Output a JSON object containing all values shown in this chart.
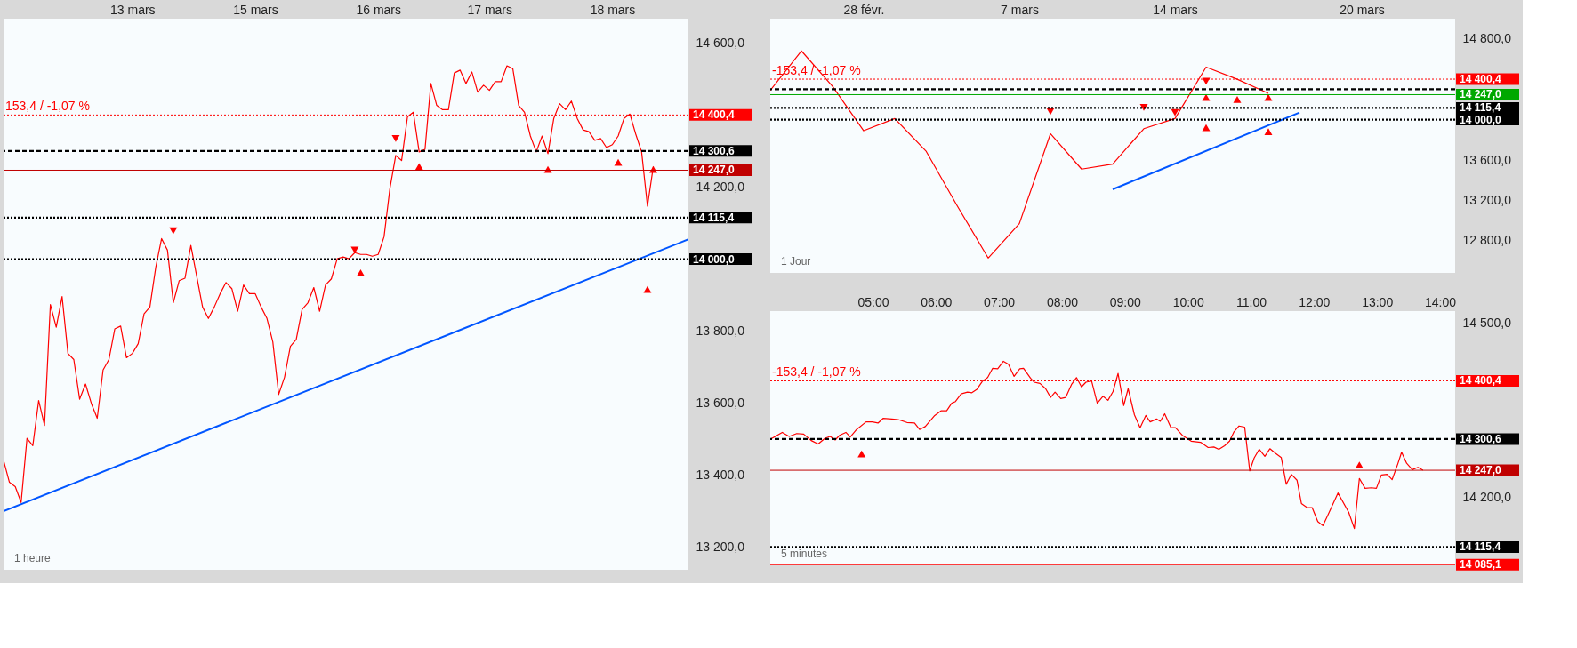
{
  "chart_data": [
    {
      "type": "line",
      "ylim": [
        13137,
        14668
      ],
      "categories": [
        null,
        null,
        null,
        null,
        null,
        null,
        null,
        null,
        null,
        null,
        null,
        null,
        null,
        null,
        null,
        null,
        null,
        null,
        null,
        null,
        null,
        null,
        "13 mars",
        null,
        null,
        null,
        null,
        null,
        null,
        null,
        null,
        null,
        null,
        null,
        null,
        null,
        null,
        null,
        null,
        null,
        null,
        null,
        null,
        "15 mars",
        null,
        null,
        null,
        null,
        null,
        null,
        null,
        null,
        null,
        null,
        null,
        null,
        null,
        null,
        null,
        null,
        null,
        null,
        null,
        null,
        "16 mars",
        null,
        null,
        null,
        null,
        null,
        null,
        null,
        null,
        null,
        null,
        null,
        null,
        null,
        null,
        null,
        null,
        null,
        null,
        "17 mars",
        null,
        null,
        null,
        null,
        null,
        null,
        null,
        null,
        null,
        null,
        null,
        null,
        null,
        null,
        null,
        null,
        null,
        null,
        null,
        null,
        "18 mars",
        null,
        null,
        null,
        null,
        null,
        null,
        null,
        null,
        null,
        null,
        null,
        null,
        null
      ],
      "yticks": [
        {
          "value": 14600,
          "label": "14 600,0"
        },
        {
          "value": 14200,
          "label": "14 200,0"
        },
        {
          "value": 13800,
          "label": "13 800,0"
        },
        {
          "value": 13600,
          "label": "13 600,0"
        },
        {
          "value": 13400,
          "label": "13 400,0"
        },
        {
          "value": 13200,
          "label": "13 200,0"
        }
      ],
      "series": [
        {
          "color": "#ff0000",
          "values": [
            13441,
            13380,
            13368,
            13324,
            13502,
            13482,
            13607,
            13538,
            13874,
            13811,
            13896,
            13738,
            13721,
            13611,
            13653,
            13599,
            13558,
            13692,
            13721,
            13806,
            13814,
            13726,
            13738,
            13765,
            13848,
            13867,
            13977,
            14057,
            14025,
            13879,
            13940,
            13947,
            14038,
            13952,
            13867,
            13835,
            13867,
            13904,
            13935,
            13918,
            13855,
            13928,
            13904,
            13904,
            13867,
            13835,
            13770,
            13624,
            13672,
            13758,
            13777,
            13860,
            13879,
            13921,
            13855,
            13928,
            13945,
            14001,
            14006,
            14001,
            14018,
            14013,
            14013,
            14008,
            14013,
            14062,
            14196,
            14288,
            14274,
            14395,
            14408,
            14298,
            14305,
            14488,
            14427,
            14415,
            14415,
            14517,
            14525,
            14488,
            14520,
            14464,
            14483,
            14469,
            14493,
            14493,
            14537,
            14529,
            14427,
            14408,
            14342,
            14298,
            14342,
            14293,
            14391,
            14432,
            14415,
            14439,
            14391,
            14359,
            14354,
            14330,
            14335,
            14310,
            14318,
            14342,
            14391,
            14403,
            14347,
            14298,
            14147,
            14257,
            null,
            null,
            null,
            null,
            null,
            null
          ]
        },
        {
          "type": "line",
          "color": "#0055ff",
          "values": [
            13300,
            null,
            null,
            null,
            null,
            null,
            null,
            null,
            null,
            null,
            null,
            null,
            null,
            null,
            null,
            null,
            null,
            null,
            null,
            null,
            null,
            null,
            null,
            null,
            null,
            null,
            null,
            null,
            null,
            null,
            null,
            null,
            null,
            null,
            null,
            null,
            null,
            null,
            null,
            null,
            null,
            null,
            null,
            null,
            null,
            null,
            null,
            null,
            null,
            null,
            null,
            null,
            null,
            null,
            null,
            null,
            null,
            null,
            null,
            null,
            null,
            null,
            null,
            null,
            null,
            null,
            null,
            null,
            null,
            null,
            null,
            null,
            null,
            null,
            null,
            null,
            null,
            null,
            null,
            null,
            null,
            null,
            null,
            null,
            null,
            null,
            null,
            null,
            null,
            null,
            null,
            null,
            null,
            null,
            null,
            null,
            null,
            null,
            null,
            null,
            null,
            null,
            null,
            null,
            null,
            null,
            null,
            null,
            null,
            null,
            null,
            null,
            null,
            null,
            null,
            null,
            null,
            14055
          ]
        },
        {
          "type": "scatter",
          "marker": "triangle-down",
          "color": "#ff0000",
          "values": [
            null,
            null,
            null,
            null,
            null,
            null,
            null,
            null,
            null,
            null,
            null,
            null,
            null,
            null,
            null,
            null,
            null,
            null,
            null,
            null,
            null,
            null,
            null,
            null,
            null,
            null,
            null,
            null,
            null,
            14079,
            null,
            null,
            null,
            null,
            null,
            null,
            null,
            null,
            null,
            null,
            null,
            null,
            null,
            null,
            null,
            null,
            null,
            null,
            null,
            null,
            null,
            null,
            null,
            null,
            null,
            null,
            null,
            null,
            null,
            null,
            14025,
            null,
            null,
            null,
            null,
            null,
            null,
            14335,
            null,
            null,
            null,
            null,
            null,
            null,
            null,
            null,
            null,
            null,
            null,
            null,
            null,
            null,
            null,
            null,
            null,
            null,
            null,
            null,
            null,
            null,
            null,
            null,
            null,
            null,
            null,
            null,
            null,
            null,
            null,
            null,
            null,
            null,
            null,
            null,
            null,
            null,
            null,
            null,
            null,
            null,
            null,
            null,
            null,
            null,
            null,
            null,
            null,
            null
          ]
        },
        {
          "type": "scatter",
          "marker": "triangle",
          "color": "#ff0000",
          "values": [
            null,
            null,
            null,
            null,
            null,
            null,
            null,
            null,
            null,
            null,
            null,
            null,
            null,
            null,
            null,
            null,
            null,
            null,
            null,
            null,
            null,
            null,
            null,
            null,
            null,
            null,
            null,
            null,
            null,
            null,
            null,
            null,
            null,
            null,
            null,
            null,
            null,
            null,
            null,
            null,
            null,
            null,
            null,
            null,
            null,
            null,
            null,
            null,
            null,
            null,
            null,
            null,
            null,
            null,
            null,
            null,
            null,
            null,
            null,
            null,
            null,
            13962,
            null,
            null,
            null,
            null,
            null,
            null,
            null,
            null,
            null,
            14257,
            null,
            null,
            null,
            null,
            null,
            null,
            null,
            null,
            null,
            null,
            null,
            null,
            null,
            null,
            null,
            null,
            null,
            null,
            null,
            null,
            null,
            14249,
            null,
            null,
            null,
            null,
            null,
            null,
            null,
            null,
            null,
            null,
            null,
            14269,
            null,
            null,
            null,
            null,
            13916,
            14249,
            null,
            null,
            null,
            null,
            null,
            null
          ]
        }
      ],
      "ref_lines": [
        {
          "axis": "y",
          "value": 14400.4,
          "label": "14 400,4",
          "color": "#ff0000",
          "line_style": "dotted"
        },
        {
          "axis": "y",
          "value": 14300.6,
          "label": "14 300,6",
          "color": "#000000",
          "line_style": "dashed"
        },
        {
          "axis": "y",
          "value": 14247.0,
          "label": "14 247,0",
          "color": "#c00000",
          "line_style": "solid"
        },
        {
          "axis": "y",
          "value": 14115.4,
          "label": "14 115,4",
          "color": "#000000",
          "line_style": "dotted"
        },
        {
          "axis": "y",
          "value": 14000.0,
          "label": "14 000,0",
          "color": "#000000",
          "line_style": "dotted"
        }
      ],
      "annotations": [
        {
          "text": "153,4 / -1,07 %",
          "y": 14400.4
        },
        "1 heure"
      ],
      "marker": "none",
      "line_style": "solid",
      "grid": false
    },
    {
      "type": "line",
      "ylim": [
        12483,
        14999
      ],
      "categories": [
        null,
        null,
        null,
        "28 févr.",
        null,
        null,
        null,
        null,
        "7 mars",
        null,
        null,
        null,
        null,
        "14 mars",
        null,
        null,
        null,
        null,
        null,
        "20 mars",
        null,
        null,
        null
      ],
      "yticks": [
        {
          "value": 14800,
          "label": "14 800,0"
        },
        {
          "value": 13600,
          "label": "13 600,0"
        },
        {
          "value": 13200,
          "label": "13 200,0"
        },
        {
          "value": 12800,
          "label": "12 800,0"
        }
      ],
      "series": [
        {
          "color": "#ff0000",
          "values": [
            14290,
            14680,
            14330,
            13890,
            14010,
            13690,
            13150,
            12630,
            12970,
            13860,
            13510,
            13560,
            13910,
            14010,
            14520,
            14400,
            14260,
            null,
            null,
            null,
            null,
            null,
            null
          ]
        },
        {
          "type": "line",
          "color": "#0055ff",
          "values": [
            null,
            null,
            null,
            null,
            null,
            null,
            null,
            null,
            null,
            null,
            null,
            13310,
            null,
            null,
            null,
            null,
            null,
            14070,
            null,
            null,
            null,
            null,
            null
          ]
        },
        {
          "type": "scatter",
          "marker": "triangle-down",
          "color": "#ff0000",
          "values": [
            null,
            null,
            null,
            null,
            null,
            null,
            null,
            null,
            null,
            14080,
            null,
            null,
            14120,
            14070,
            14380,
            null,
            null,
            null,
            null,
            null,
            null,
            null,
            null
          ]
        },
        {
          "type": "scatter",
          "marker": "triangle",
          "color": "#ff0000",
          "values": [
            null,
            null,
            null,
            null,
            null,
            null,
            null,
            null,
            null,
            null,
            null,
            null,
            null,
            null,
            14220,
            14200,
            14220,
            null,
            null,
            null,
            null,
            null,
            null
          ]
        },
        {
          "type": "scatter",
          "marker": "triangle",
          "color": "#ff0000",
          "values": [
            null,
            null,
            null,
            null,
            null,
            null,
            null,
            null,
            null,
            null,
            null,
            null,
            null,
            null,
            13920,
            null,
            13880,
            null,
            null,
            null,
            null,
            null,
            null
          ]
        }
      ],
      "ref_lines": [
        {
          "axis": "y",
          "value": 14400.4,
          "label": "14 400,4",
          "color": "#ff0000",
          "line_style": "dotted"
        },
        {
          "axis": "y",
          "value": 14300.6,
          "color": "#000000",
          "line_style": "dashed"
        },
        {
          "axis": "y",
          "value": 14247.0,
          "label": "14 247,0",
          "color": "#00a800",
          "line_style": "solid"
        },
        {
          "axis": "y",
          "value": 14115.4,
          "label": "14 115,4",
          "color": "#000000",
          "line_style": "dotted"
        },
        {
          "axis": "y",
          "value": 14000.0,
          "label": "14 000,0",
          "color": "#000000",
          "line_style": "dotted"
        }
      ],
      "annotations": [
        {
          "text": "-153,4 / -1,07 %",
          "y": 14400.4
        },
        "1 Jour"
      ],
      "marker": "none",
      "line_style": "solid",
      "grid": false
    },
    {
      "type": "line",
      "xlim": [
        3.37,
        14.24
      ],
      "ylim": [
        14084,
        14520
      ],
      "xticks": [
        {
          "value": 5,
          "label": "05:00"
        },
        {
          "value": 6,
          "label": "06:00"
        },
        {
          "value": 7,
          "label": "07:00"
        },
        {
          "value": 8,
          "label": "08:00"
        },
        {
          "value": 9,
          "label": "09:00"
        },
        {
          "value": 10,
          "label": "10:00"
        },
        {
          "value": 11,
          "label": "11:00"
        },
        {
          "value": 12,
          "label": "12:00"
        },
        {
          "value": 13,
          "label": "13:00"
        },
        {
          "value": 14,
          "label": "14:00"
        }
      ],
      "yticks": [
        {
          "value": 14500,
          "label": "14 500,0"
        },
        {
          "value": 14200,
          "label": "14 200,0"
        }
      ],
      "x": [
        3.37,
        3.56,
        3.67,
        3.79,
        3.9,
        4.02,
        4.13,
        4.24,
        4.32,
        4.4,
        4.47,
        4.57,
        4.64,
        4.74,
        4.89,
        4.99,
        5.08,
        5.16,
        5.3,
        5.4,
        5.54,
        5.66,
        5.74,
        5.83,
        5.98,
        6.08,
        6.17,
        6.25,
        6.31,
        6.4,
        6.5,
        6.57,
        6.65,
        6.74,
        6.82,
        6.9,
        6.98,
        7.07,
        7.15,
        7.24,
        7.33,
        7.39,
        7.5,
        7.56,
        7.65,
        7.74,
        7.82,
        7.89,
        7.98,
        8.06,
        8.15,
        8.23,
        8.31,
        8.38,
        8.47,
        8.56,
        8.65,
        8.73,
        8.81,
        8.89,
        8.98,
        9.05,
        9.15,
        9.24,
        9.33,
        9.4,
        9.5,
        9.56,
        9.63,
        9.73,
        9.8,
        9.91,
        10.05,
        10.2,
        10.32,
        10.41,
        10.49,
        10.58,
        10.66,
        10.73,
        10.81,
        10.9,
        10.98,
        11.05,
        11.13,
        11.22,
        11.3,
        11.39,
        11.48,
        11.56,
        11.64,
        11.73,
        11.8,
        11.89,
        11.97,
        12.06,
        12.14,
        12.22,
        12.38,
        12.55,
        12.64,
        12.72,
        12.81,
        12.91,
        12.99,
        13.07,
        13.16,
        13.24,
        13.33,
        13.39,
        13.47,
        13.56,
        13.65,
        13.73
      ],
      "series": [
        {
          "color": "#ff0000",
          "values": [
            14300,
            14312,
            14305,
            14310,
            14309,
            14298,
            14292,
            14302,
            14305,
            14299,
            14307,
            14312,
            14304,
            14317,
            14330,
            14330,
            14328,
            14336,
            14335,
            14334,
            14329,
            14328,
            14317,
            14322,
            14341,
            14349,
            14349,
            14362,
            14365,
            14378,
            14381,
            14380,
            14386,
            14400,
            14406,
            14422,
            14421,
            14434,
            14429,
            14408,
            14421,
            14422,
            14405,
            14398,
            14396,
            14387,
            14372,
            14381,
            14370,
            14372,
            14394,
            14406,
            14390,
            14398,
            14400,
            14362,
            14374,
            14367,
            14382,
            14413,
            14358,
            14387,
            14342,
            14320,
            14341,
            14330,
            14335,
            14331,
            14344,
            14320,
            14320,
            14307,
            14297,
            14295,
            14286,
            14287,
            14283,
            14289,
            14297,
            14313,
            14323,
            14321,
            14246,
            14268,
            14283,
            14271,
            14284,
            14276,
            14269,
            14223,
            14240,
            14230,
            14190,
            14183,
            14183,
            14159,
            14152,
            14170,
            14208,
            14175,
            14147,
            14233,
            14216,
            14217,
            14216,
            14239,
            14240,
            14231,
            14258,
            14278,
            14259,
            14248,
            14252,
            14247
          ]
        },
        {
          "type": "scatter",
          "marker": "triangle",
          "color": "#ff0000",
          "x": [
            4.82,
            12.72
          ],
          "values": [
            14275,
            14256
          ]
        }
      ],
      "ref_lines": [
        {
          "axis": "y",
          "value": 14400.4,
          "label": "14 400,4",
          "color": "#ff0000",
          "line_style": "dotted"
        },
        {
          "axis": "y",
          "value": 14300.6,
          "label": "14 300,6",
          "color": "#000000",
          "line_style": "dashed"
        },
        {
          "axis": "y",
          "value": 14247.0,
          "label": "14 247,0",
          "color": "#c00000",
          "line_style": "solid"
        },
        {
          "axis": "y",
          "value": 14115.4,
          "label": "14 115,4",
          "color": "#000000",
          "line_style": "dotted"
        },
        {
          "axis": "y",
          "value": 14085.1,
          "label": "14 085,1",
          "color": "#ff0000",
          "line_style": "solid"
        }
      ],
      "annotations": [
        {
          "text": "-153,4 / -1,07 %",
          "y": 14400.4
        },
        "5 minutes"
      ],
      "marker": "none",
      "line_style": "solid",
      "grid": false
    }
  ]
}
